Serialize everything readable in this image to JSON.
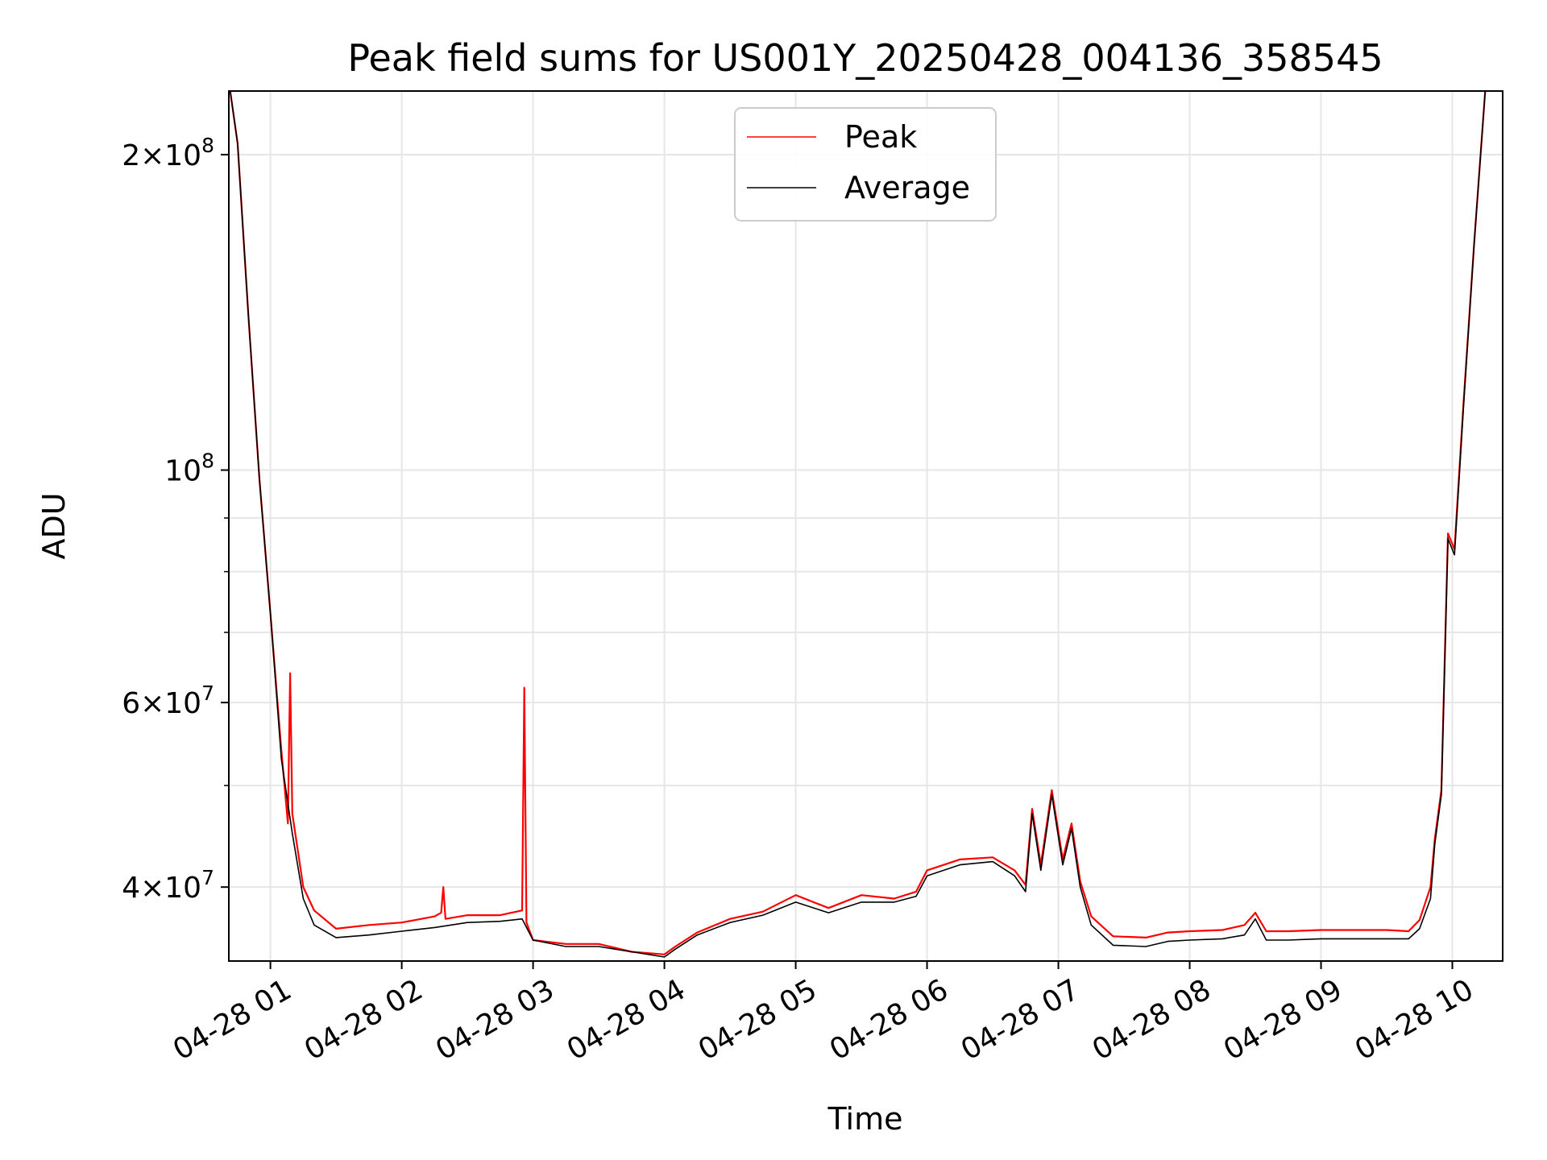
{
  "chart_data": {
    "type": "line",
    "title": "Peak field sums for US001Y_20250428_004136_358545",
    "xlabel": "Time",
    "ylabel": "ADU",
    "y_scale": "log",
    "ylim": [
      34000000,
      230000000
    ],
    "xlim": [
      "2025-04-28 00:41",
      "2025-04-28 10:23"
    ],
    "grid": true,
    "legend_position": "top-center",
    "x_ticks": [
      {
        "t": "2025-04-28 01:00",
        "label": "04-28 01"
      },
      {
        "t": "2025-04-28 02:00",
        "label": "04-28 02"
      },
      {
        "t": "2025-04-28 03:00",
        "label": "04-28 03"
      },
      {
        "t": "2025-04-28 04:00",
        "label": "04-28 04"
      },
      {
        "t": "2025-04-28 05:00",
        "label": "04-28 05"
      },
      {
        "t": "2025-04-28 06:00",
        "label": "04-28 06"
      },
      {
        "t": "2025-04-28 07:00",
        "label": "04-28 07"
      },
      {
        "t": "2025-04-28 08:00",
        "label": "04-28 08"
      },
      {
        "t": "2025-04-28 09:00",
        "label": "04-28 09"
      },
      {
        "t": "2025-04-28 10:00",
        "label": "04-28 10"
      }
    ],
    "y_major_ticks": [
      {
        "value": 40000000,
        "mantissa": "4",
        "exponent": "7"
      },
      {
        "value": 60000000,
        "mantissa": "6",
        "exponent": "7"
      },
      {
        "value": 100000000,
        "mantissa": "",
        "exponent": "8"
      },
      {
        "value": 200000000,
        "mantissa": "2",
        "exponent": "8"
      }
    ],
    "y_minor_ticks": [
      50000000,
      70000000,
      80000000,
      90000000
    ],
    "series": [
      {
        "name": "Peak",
        "color": "#ff0000",
        "x": [
          "2025-04-28 00:41",
          "2025-04-28 00:45",
          "2025-04-28 00:50",
          "2025-04-28 00:55",
          "2025-04-28 01:00",
          "2025-04-28 01:05",
          "2025-04-28 01:08",
          "2025-04-28 01:09",
          "2025-04-28 01:10",
          "2025-04-28 01:15",
          "2025-04-28 01:20",
          "2025-04-28 01:30",
          "2025-04-28 01:45",
          "2025-04-28 02:00",
          "2025-04-28 02:15",
          "2025-04-28 02:18",
          "2025-04-28 02:19",
          "2025-04-28 02:20",
          "2025-04-28 02:30",
          "2025-04-28 02:45",
          "2025-04-28 02:55",
          "2025-04-28 02:56",
          "2025-04-28 02:57",
          "2025-04-28 03:00",
          "2025-04-28 03:15",
          "2025-04-28 03:30",
          "2025-04-28 03:45",
          "2025-04-28 04:00",
          "2025-04-28 04:05",
          "2025-04-28 04:15",
          "2025-04-28 04:30",
          "2025-04-28 04:45",
          "2025-04-28 05:00",
          "2025-04-28 05:15",
          "2025-04-28 05:30",
          "2025-04-28 05:45",
          "2025-04-28 05:55",
          "2025-04-28 06:00",
          "2025-04-28 06:15",
          "2025-04-28 06:30",
          "2025-04-28 06:40",
          "2025-04-28 06:45",
          "2025-04-28 06:48",
          "2025-04-28 06:52",
          "2025-04-28 06:57",
          "2025-04-28 07:02",
          "2025-04-28 07:06",
          "2025-04-28 07:10",
          "2025-04-28 07:15",
          "2025-04-28 07:25",
          "2025-04-28 07:40",
          "2025-04-28 07:50",
          "2025-04-28 08:00",
          "2025-04-28 08:15",
          "2025-04-28 08:25",
          "2025-04-28 08:30",
          "2025-04-28 08:35",
          "2025-04-28 08:45",
          "2025-04-28 09:00",
          "2025-04-28 09:15",
          "2025-04-28 09:30",
          "2025-04-28 09:40",
          "2025-04-28 09:45",
          "2025-04-28 09:50",
          "2025-04-28 09:52",
          "2025-04-28 09:55",
          "2025-04-28 09:58",
          "2025-04-28 10:01",
          "2025-04-28 10:05",
          "2025-04-28 10:10",
          "2025-04-28 10:15"
        ],
        "y": [
          235000000,
          205000000,
          140000000,
          98000000,
          73000000,
          54000000,
          46000000,
          64000000,
          47000000,
          40000000,
          38000000,
          36500000,
          36800000,
          37000000,
          37500000,
          37800000,
          40000000,
          37300000,
          37600000,
          37600000,
          38000000,
          62000000,
          37000000,
          35600000,
          35300000,
          35300000,
          34700000,
          34500000,
          35100000,
          36200000,
          37300000,
          37900000,
          39300000,
          38200000,
          39300000,
          39000000,
          39600000,
          41500000,
          42500000,
          42700000,
          41500000,
          40200000,
          47500000,
          42000000,
          49500000,
          42500000,
          46000000,
          40500000,
          37500000,
          35900000,
          35800000,
          36200000,
          36300000,
          36400000,
          36800000,
          37800000,
          36300000,
          36300000,
          36400000,
          36400000,
          36400000,
          36300000,
          37200000,
          40000000,
          44500000,
          49500000,
          87000000,
          84000000,
          115000000,
          165000000,
          230000000
        ]
      },
      {
        "name": "Average",
        "color": "#000000",
        "x": [
          "2025-04-28 00:41",
          "2025-04-28 00:45",
          "2025-04-28 00:50",
          "2025-04-28 00:55",
          "2025-04-28 01:00",
          "2025-04-28 01:05",
          "2025-04-28 01:10",
          "2025-04-28 01:15",
          "2025-04-28 01:20",
          "2025-04-28 01:30",
          "2025-04-28 01:45",
          "2025-04-28 02:00",
          "2025-04-28 02:15",
          "2025-04-28 02:30",
          "2025-04-28 02:45",
          "2025-04-28 02:55",
          "2025-04-28 03:00",
          "2025-04-28 03:15",
          "2025-04-28 03:30",
          "2025-04-28 03:45",
          "2025-04-28 04:00",
          "2025-04-28 04:05",
          "2025-04-28 04:15",
          "2025-04-28 04:30",
          "2025-04-28 04:45",
          "2025-04-28 05:00",
          "2025-04-28 05:15",
          "2025-04-28 05:30",
          "2025-04-28 05:45",
          "2025-04-28 05:55",
          "2025-04-28 06:00",
          "2025-04-28 06:15",
          "2025-04-28 06:30",
          "2025-04-28 06:40",
          "2025-04-28 06:45",
          "2025-04-28 06:48",
          "2025-04-28 06:52",
          "2025-04-28 06:57",
          "2025-04-28 07:02",
          "2025-04-28 07:06",
          "2025-04-28 07:10",
          "2025-04-28 07:15",
          "2025-04-28 07:25",
          "2025-04-28 07:40",
          "2025-04-28 07:50",
          "2025-04-28 08:00",
          "2025-04-28 08:15",
          "2025-04-28 08:25",
          "2025-04-28 08:30",
          "2025-04-28 08:35",
          "2025-04-28 08:45",
          "2025-04-28 09:00",
          "2025-04-28 09:15",
          "2025-04-28 09:30",
          "2025-04-28 09:40",
          "2025-04-28 09:45",
          "2025-04-28 09:50",
          "2025-04-28 09:52",
          "2025-04-28 09:55",
          "2025-04-28 09:58",
          "2025-04-28 10:01",
          "2025-04-28 10:05",
          "2025-04-28 10:10",
          "2025-04-28 10:15"
        ],
        "y": [
          235000000,
          205000000,
          140000000,
          98000000,
          73000000,
          53000000,
          45000000,
          39000000,
          36800000,
          35800000,
          36000000,
          36300000,
          36600000,
          37000000,
          37100000,
          37300000,
          35600000,
          35100000,
          35100000,
          34700000,
          34300000,
          34900000,
          36000000,
          37000000,
          37600000,
          38700000,
          37800000,
          38700000,
          38700000,
          39200000,
          41000000,
          42000000,
          42300000,
          41000000,
          39600000,
          47000000,
          41500000,
          49000000,
          42000000,
          45500000,
          40000000,
          36800000,
          35200000,
          35100000,
          35500000,
          35600000,
          35700000,
          36000000,
          37300000,
          35600000,
          35600000,
          35700000,
          35700000,
          35700000,
          35700000,
          36500000,
          39000000,
          44000000,
          49000000,
          86000000,
          83000000,
          114000000,
          165000000,
          230000000
        ]
      }
    ]
  }
}
